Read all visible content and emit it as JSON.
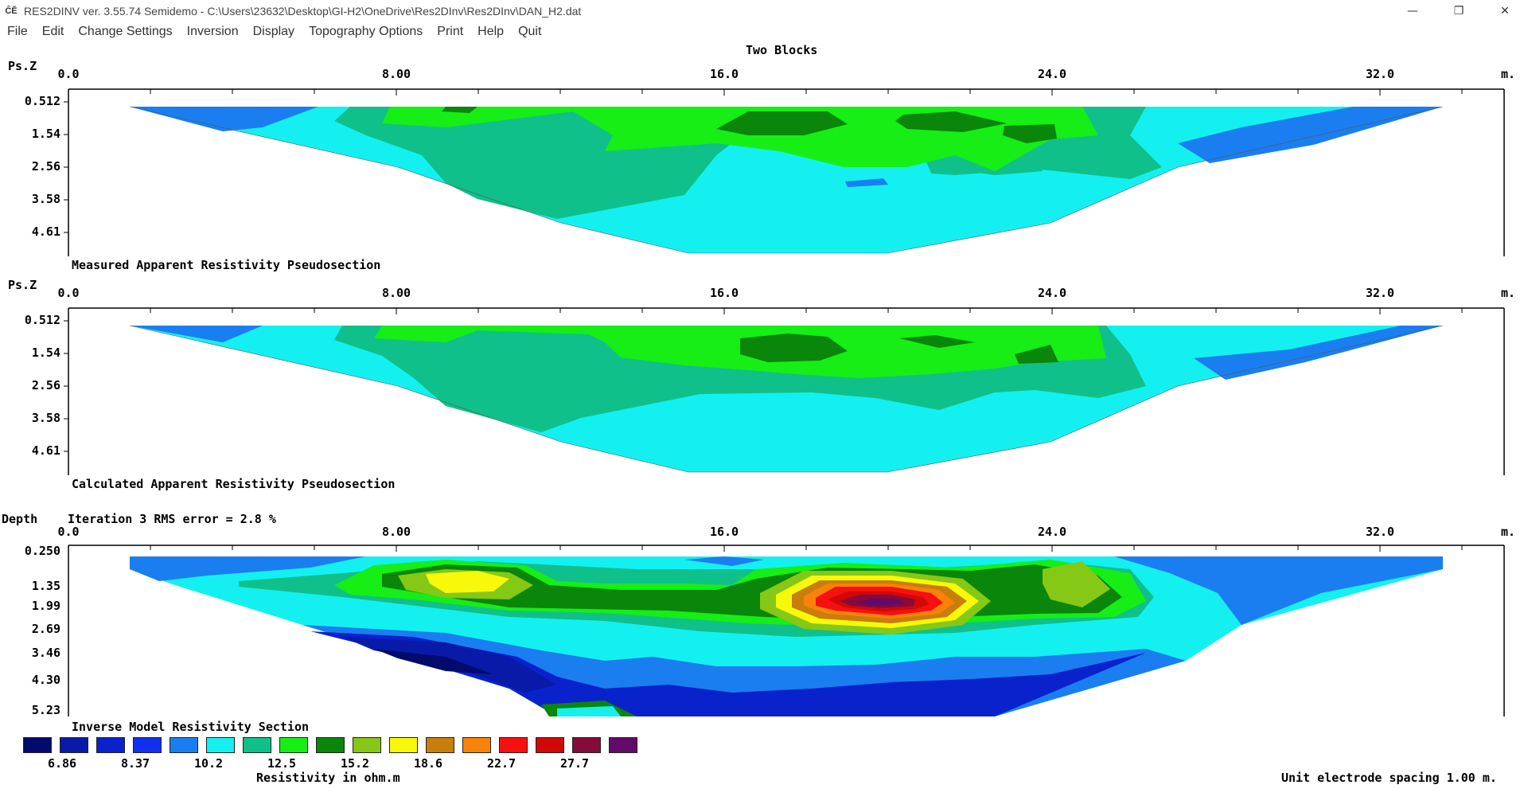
{
  "window": {
    "icon_text": "ĈĔ",
    "title": "RES2DINV ver. 3.55.74 Semidemo  - C:\\Users\\23632\\Desktop\\GI-H2\\OneDrive\\Res2DInv\\Res2DInv\\DAN_H2.dat",
    "min_glyph": "—",
    "max_glyph": "❐",
    "close_glyph": "✕"
  },
  "menu": [
    "File",
    "Edit",
    "Change Settings",
    "Inversion",
    "Display",
    "Topography Options",
    "Print",
    "Help",
    "Quit"
  ],
  "survey_title": "Two Blocks",
  "colors": {
    "swatches": [
      "#020a6b",
      "#0a1aa8",
      "#0a22cc",
      "#1030ee",
      "#1a7ef0",
      "#14f0f0",
      "#10c08a",
      "#16ee16",
      "#0a860a",
      "#86c816",
      "#f8f80a",
      "#c87e0a",
      "#f8820a",
      "#f81010",
      "#d00808",
      "#860a3a",
      "#620a6a"
    ]
  },
  "panels": [
    {
      "id": "measured",
      "y_unit": "Ps.Z",
      "x_unit": "m.",
      "x_ticks": [
        "0.0",
        "8.00",
        "16.0",
        "24.0",
        "32.0"
      ],
      "y_ticks": [
        "0.512",
        "1.54",
        "2.56",
        "3.58",
        "4.61"
      ],
      "caption": "Measured Apparent Resistivity Pseudosection"
    },
    {
      "id": "calculated",
      "y_unit": "Ps.Z",
      "x_unit": "m.",
      "x_ticks": [
        "0.0",
        "8.00",
        "16.0",
        "24.0",
        "32.0"
      ],
      "y_ticks": [
        "0.512",
        "1.54",
        "2.56",
        "3.58",
        "4.61"
      ],
      "caption": "Calculated Apparent Resistivity Pseudosection"
    },
    {
      "id": "model",
      "y_unit": "Depth",
      "x_unit": "m.",
      "iteration_text": "Iteration 3 RMS error = 2.8 %",
      "x_ticks": [
        "0.0",
        "8.00",
        "16.0",
        "24.0",
        "32.0"
      ],
      "y_ticks": [
        "0.250",
        "1.35",
        "1.99",
        "2.69",
        "3.46",
        "4.30",
        "5.23"
      ],
      "caption": "Inverse Model Resistivity Section"
    }
  ],
  "legend": {
    "labels": [
      "6.86",
      "8.37",
      "10.2",
      "12.5",
      "15.2",
      "18.6",
      "22.7",
      "27.7"
    ],
    "unit_label": "Resistivity in ohm.m"
  },
  "footer_note": "Unit electrode spacing 1.00 m."
}
